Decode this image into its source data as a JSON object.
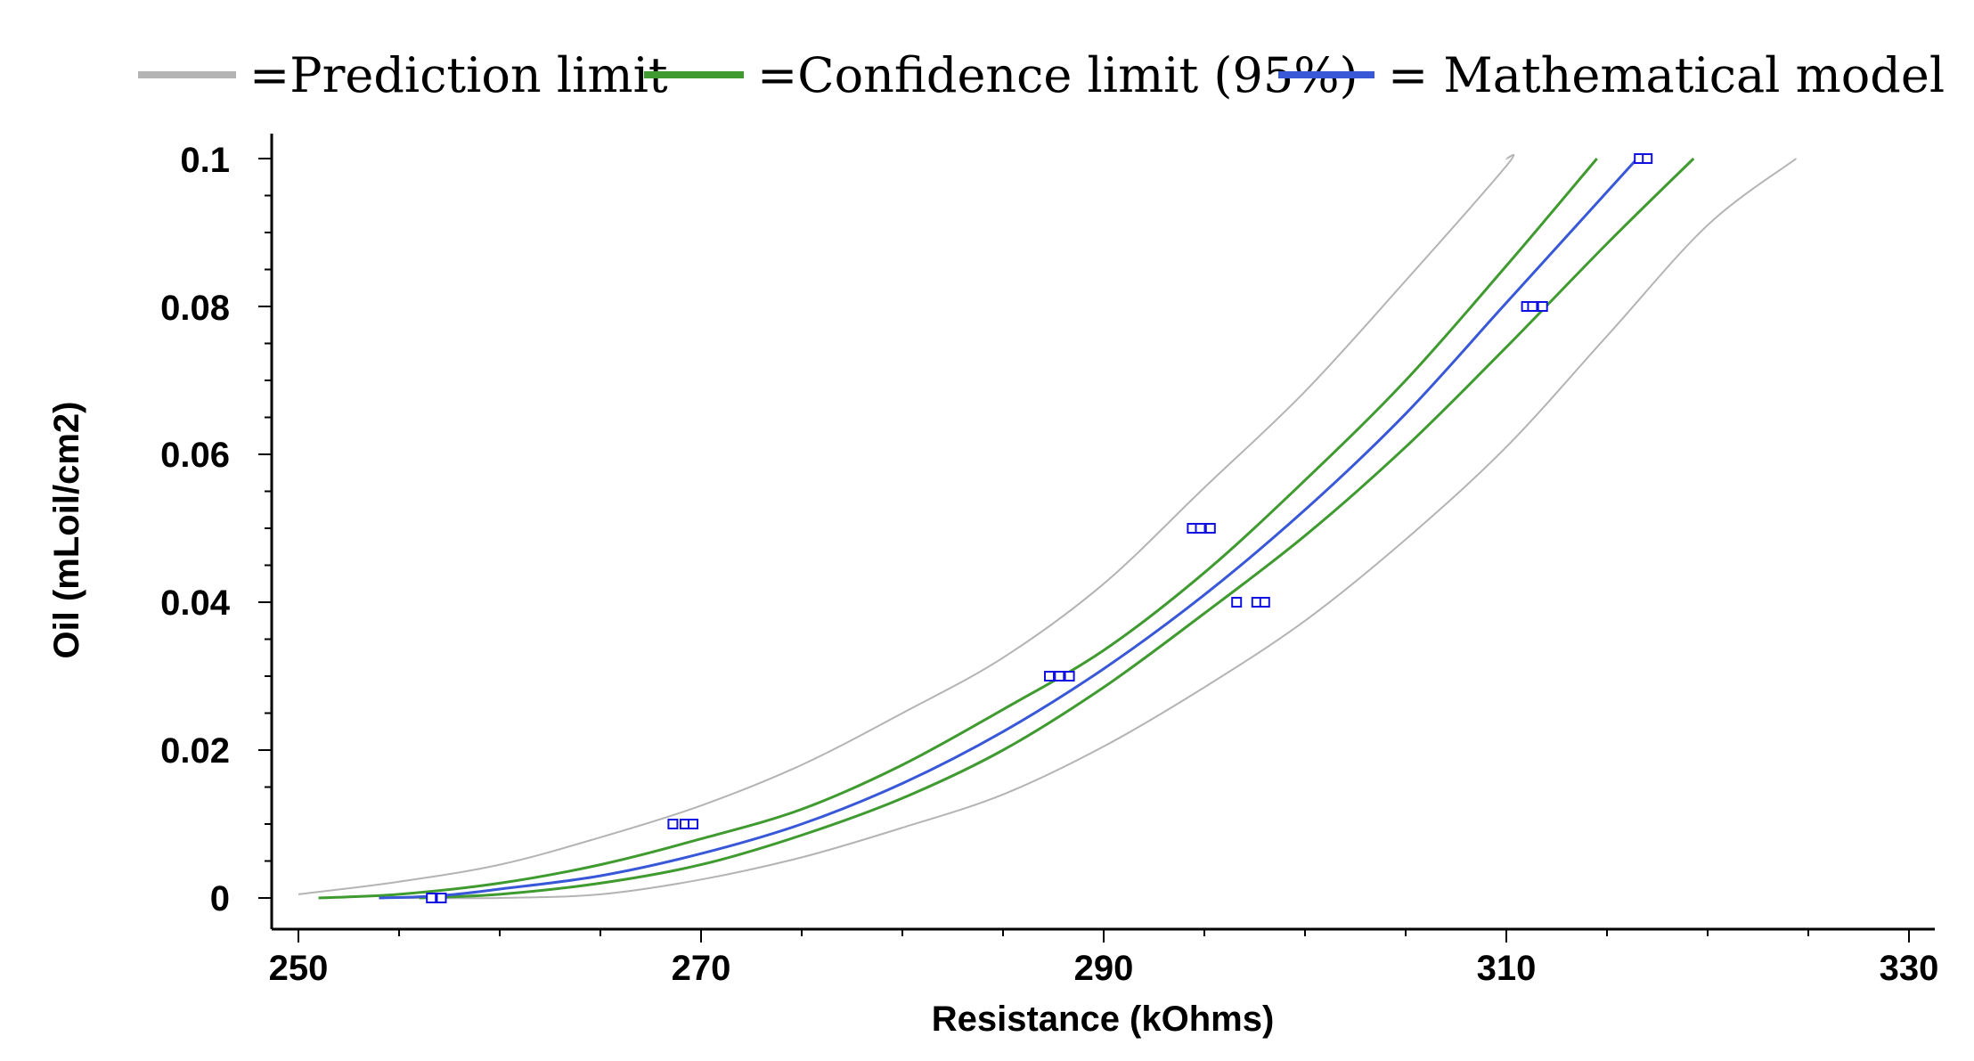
{
  "chart_data": {
    "type": "line",
    "title": "",
    "xlabel": "Resistance (kOhms)",
    "ylabel": "Oil (mLoil/cm2)",
    "xlim": [
      250,
      330
    ],
    "ylim": [
      0,
      0.1
    ],
    "x_ticks": [
      "250",
      "270",
      "290",
      "310",
      "330"
    ],
    "y_ticks": [
      "0",
      "0.02",
      "0.04",
      "0.06",
      "0.08",
      "0.1"
    ],
    "legend": [
      {
        "label": "=Prediction limit",
        "color": "#b4b4b4"
      },
      {
        "label": "=Confidence limit (95%)",
        "color": "#3f9a2f"
      },
      {
        "label": "= Mathematical model",
        "color": "#3858d8"
      }
    ],
    "series": [
      {
        "name": "Prediction limit upper",
        "color": "#b4b4b4",
        "x": [
          250,
          255,
          260,
          265,
          270,
          275,
          280,
          285,
          290,
          295,
          300,
          305,
          310,
          310
        ],
        "y": [
          0.0005,
          0.0022,
          0.0045,
          0.0082,
          0.0125,
          0.018,
          0.025,
          0.0325,
          0.0425,
          0.0555,
          0.0685,
          0.0835,
          0.099,
          0.1
        ]
      },
      {
        "name": "Prediction limit lower",
        "color": "#b4b4b4",
        "x": [
          255,
          260,
          265,
          270,
          275,
          280,
          285,
          290,
          295,
          300,
          305,
          310,
          315,
          320,
          324.4
        ],
        "y": [
          0.0,
          0.0,
          0.0005,
          0.0025,
          0.0055,
          0.0095,
          0.014,
          0.0205,
          0.0285,
          0.0375,
          0.0485,
          0.061,
          0.076,
          0.091,
          0.1
        ]
      },
      {
        "name": "Confidence limit upper",
        "color": "#3f9a2f",
        "x": [
          251,
          255,
          260,
          265,
          270,
          275,
          280,
          285,
          290,
          295,
          300,
          305,
          310,
          314.5
        ],
        "y": [
          0.0,
          0.0005,
          0.002,
          0.0045,
          0.008,
          0.012,
          0.018,
          0.0255,
          0.0335,
          0.044,
          0.0565,
          0.07,
          0.0855,
          0.1
        ]
      },
      {
        "name": "Confidence limit lower",
        "color": "#3f9a2f",
        "x": [
          256,
          260,
          265,
          270,
          275,
          280,
          285,
          290,
          295,
          300,
          305,
          310,
          315,
          319.3
        ],
        "y": [
          0.0,
          0.0005,
          0.002,
          0.0045,
          0.0085,
          0.0135,
          0.02,
          0.0285,
          0.0385,
          0.049,
          0.061,
          0.0745,
          0.0885,
          0.1
        ]
      },
      {
        "name": "Mathematical model",
        "color": "#3858d8",
        "x": [
          254,
          257,
          260,
          265,
          270,
          275,
          280,
          285,
          290,
          295,
          300,
          305,
          310,
          315,
          316.5
        ],
        "y": [
          0.0,
          0.0003,
          0.0012,
          0.003,
          0.006,
          0.01,
          0.0155,
          0.0225,
          0.031,
          0.041,
          0.0525,
          0.0655,
          0.0805,
          0.0955,
          0.1
        ]
      }
    ],
    "points": {
      "name": "Observations",
      "color": "#1010e0",
      "x": [
        256.6,
        257.1,
        268.6,
        269.2,
        269.6,
        287.3,
        287.8,
        288.3,
        294.4,
        294.8,
        295.3,
        296.6,
        297.6,
        298.0,
        311.0,
        311.3,
        311.8,
        316.6,
        317.0
      ],
      "y": [
        0,
        0,
        0.01,
        0.01,
        0.01,
        0.03,
        0.03,
        0.03,
        0.05,
        0.05,
        0.05,
        0.04,
        0.04,
        0.04,
        0.08,
        0.08,
        0.08,
        0.1,
        0.1
      ]
    }
  }
}
